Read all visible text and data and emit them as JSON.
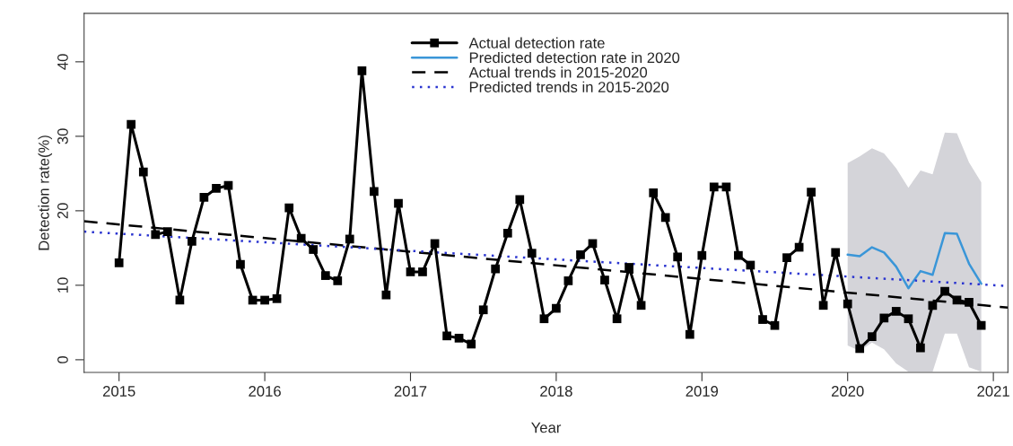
{
  "chart_data": {
    "type": "line",
    "xlabel": "Year",
    "ylabel": "Detection rate(%)",
    "xlim": [
      2014.76,
      2021.1
    ],
    "ylim": [
      -1.7,
      46.5
    ],
    "xticks": [
      2015,
      2016,
      2017,
      2018,
      2019,
      2020,
      2021
    ],
    "yticks": [
      0,
      10,
      20,
      30,
      40
    ],
    "grid": false,
    "legend": "top",
    "series": [
      {
        "name": "Actual detection rate",
        "color": "#000000",
        "marker": "square",
        "line_style": "solid",
        "x": [
          2015.0,
          2015.083,
          2015.167,
          2015.25,
          2015.333,
          2015.417,
          2015.5,
          2015.583,
          2015.667,
          2015.75,
          2015.833,
          2015.917,
          2016.0,
          2016.083,
          2016.167,
          2016.25,
          2016.333,
          2016.417,
          2016.5,
          2016.583,
          2016.667,
          2016.75,
          2016.833,
          2016.917,
          2017.0,
          2017.083,
          2017.167,
          2017.25,
          2017.333,
          2017.417,
          2017.5,
          2017.583,
          2017.667,
          2017.75,
          2017.833,
          2017.917,
          2018.0,
          2018.083,
          2018.167,
          2018.25,
          2018.333,
          2018.417,
          2018.5,
          2018.583,
          2018.667,
          2018.75,
          2018.833,
          2018.917,
          2019.0,
          2019.083,
          2019.167,
          2019.25,
          2019.333,
          2019.417,
          2019.5,
          2019.583,
          2019.667,
          2019.75,
          2019.833,
          2019.917,
          2020.0,
          2020.083,
          2020.167,
          2020.25,
          2020.333,
          2020.417,
          2020.5,
          2020.583,
          2020.667,
          2020.75,
          2020.833,
          2020.917
        ],
        "values": [
          13,
          31.6,
          25.2,
          16.8,
          17.2,
          8,
          15.9,
          21.8,
          23,
          23.4,
          12.8,
          8,
          8,
          8.2,
          20.4,
          16.3,
          14.8,
          11.3,
          10.6,
          16.2,
          38.8,
          22.6,
          8.7,
          21,
          11.8,
          11.8,
          15.6,
          3.2,
          2.9,
          2.1,
          6.7,
          12.2,
          17,
          21.5,
          14.3,
          5.5,
          6.9,
          10.6,
          14.1,
          15.6,
          10.7,
          5.5,
          12.4,
          7.3,
          22.4,
          19.1,
          13.8,
          3.4,
          14,
          23.2,
          23.2,
          14,
          12.7,
          5.4,
          4.6,
          13.7,
          15.1,
          22.5,
          7.3,
          14.4,
          7.5,
          1.5,
          3.1,
          5.6,
          6.5,
          5.5,
          1.6,
          7.3,
          9.2,
          8,
          7.7,
          4.6
        ]
      },
      {
        "name": "Predicted detection rate in 2020",
        "color": "#3a96d8",
        "marker": "none",
        "line_style": "solid",
        "x": [
          2020.0,
          2020.083,
          2020.167,
          2020.25,
          2020.333,
          2020.417,
          2020.5,
          2020.583,
          2020.667,
          2020.75,
          2020.833,
          2020.917
        ],
        "values": [
          14.1,
          13.9,
          15.1,
          14.4,
          12.5,
          9.6,
          11.9,
          11.4,
          17,
          16.9,
          12.9,
          10.2
        ],
        "upper": [
          26.4,
          27.3,
          28.4,
          27.7,
          25.7,
          23.1,
          25.4,
          24.9,
          30.5,
          30.4,
          26.5,
          23.8
        ],
        "lower": [
          1.9,
          1.2,
          2.3,
          1.4,
          -0.5,
          -1.6,
          -1.6,
          -1.6,
          3.5,
          3.5,
          -1,
          -1.6
        ]
      },
      {
        "name": "Actual trends in 2015-2020",
        "color": "#000000",
        "marker": "none",
        "line_style": "dashed",
        "x": [
          2014.76,
          2021.1
        ],
        "values": [
          18.6,
          7.0
        ]
      },
      {
        "name": "Predicted trends in 2015-2020",
        "color": "#2b35d0",
        "marker": "none",
        "line_style": "dotted",
        "x": [
          2014.76,
          2021.1
        ],
        "values": [
          17.2,
          9.9
        ]
      }
    ]
  }
}
